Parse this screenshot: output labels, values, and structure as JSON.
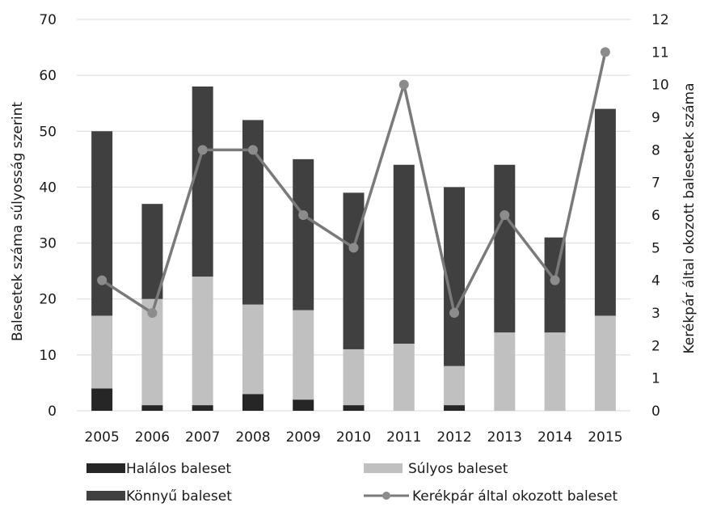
{
  "chart_data": {
    "type": "bar",
    "stacked": true,
    "categories": [
      "2005",
      "2006",
      "2007",
      "2008",
      "2009",
      "2010",
      "2011",
      "2012",
      "2013",
      "2014",
      "2015"
    ],
    "series": [
      {
        "name": "Halálos baleset",
        "type": "bar",
        "axis": "left",
        "color": "#262626",
        "values": [
          4,
          1,
          1,
          3,
          2,
          1,
          0,
          1,
          0,
          0,
          0
        ]
      },
      {
        "name": "Súlyos baleset",
        "type": "bar",
        "axis": "left",
        "color": "#c0c0c0",
        "values": [
          13,
          19,
          23,
          16,
          16,
          10,
          12,
          7,
          14,
          14,
          17
        ]
      },
      {
        "name": "Könnyű baleset",
        "type": "bar",
        "axis": "left",
        "color": "#404040",
        "values": [
          33,
          17,
          34,
          33,
          27,
          28,
          32,
          32,
          30,
          17,
          37
        ]
      },
      {
        "name": "Kerékpár által okozott baleset",
        "type": "line",
        "axis": "right",
        "color": "#7a7a7a",
        "values": [
          4,
          3,
          8,
          8,
          6,
          5,
          10,
          3,
          6,
          4,
          11
        ]
      }
    ],
    "ylabel": "Balesetek száma súlyosság szerint",
    "y2label": "Kerékpár által okozott balesetek száma",
    "ylim": [
      0,
      70
    ],
    "yticks": [
      "0",
      "10",
      "20",
      "30",
      "40",
      "50",
      "60",
      "70"
    ],
    "y2lim": [
      0,
      12
    ],
    "y2ticks": [
      "0",
      "1",
      "2",
      "3",
      "4",
      "5",
      "6",
      "7",
      "8",
      "9",
      "10",
      "11",
      "12"
    ],
    "grid": true,
    "legend_position": "bottom"
  }
}
